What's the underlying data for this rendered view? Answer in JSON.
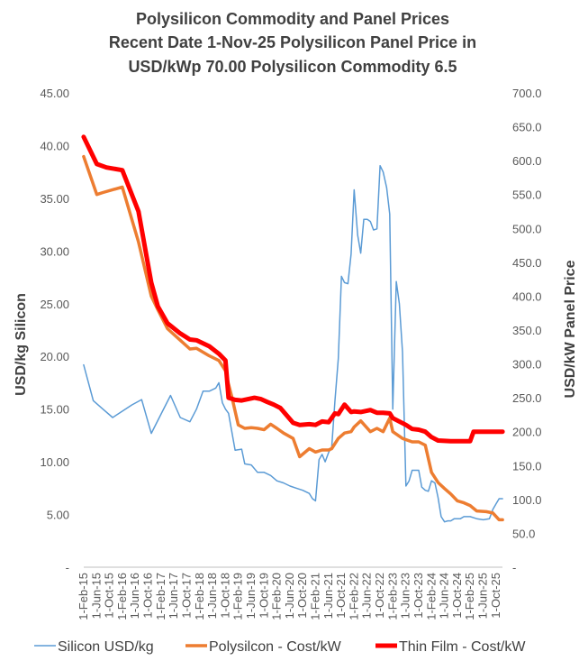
{
  "chart_data": {
    "type": "line",
    "title_lines": [
      "Polysilicon Commodity and Panel Prices",
      "Recent Date 1-Nov-25 Polysilicon Panel Price in",
      "USD/kWp 70.00 Polysilicon Commodity 6.5"
    ],
    "ylabel_left": "USD/kg Silicon",
    "ylabel_right": "USD/kW Panel Price",
    "ylim_left": [
      0,
      45
    ],
    "ylim_right": [
      0,
      700
    ],
    "yticks_left": [
      "-",
      "5.00",
      "10.00",
      "15.00",
      "20.00",
      "25.00",
      "30.00",
      "35.00",
      "40.00",
      "45.00"
    ],
    "yticks_right": [
      "-",
      "50.0",
      "100.0",
      "150.0",
      "200.0",
      "250.0",
      "300.0",
      "350.0",
      "400.0",
      "450.0",
      "500.0",
      "550.0",
      "600.0",
      "650.0",
      "700.0"
    ],
    "x_range": [
      2015.083,
      2025.917
    ],
    "xtick_labels": [
      "1-Feb-15",
      "1-Jun-15",
      "1-Oct-15",
      "1-Feb-16",
      "1-Jun-16",
      "1-Oct-16",
      "1-Feb-17",
      "1-Jun-17",
      "1-Oct-17",
      "1-Feb-18",
      "1-Jun-18",
      "1-Oct-18",
      "1-Feb-19",
      "1-Jun-19",
      "1-Oct-19",
      "1-Feb-20",
      "1-Jun-20",
      "1-Oct-20",
      "1-Feb-21",
      "1-Jun-21",
      "1-Oct-21",
      "1-Feb-22",
      "1-Jun-22",
      "1-Oct-22",
      "1-Feb-23",
      "1-Jun-23",
      "1-Oct-23",
      "1-Feb-24",
      "1-Jun-24",
      "1-Oct-24",
      "1-Feb-25",
      "1-Jun-25",
      "1-Oct-25"
    ],
    "series": [
      {
        "name": "Silicon USD/kg",
        "axis": "left",
        "color": "#5b9bd5",
        "width": 1.5,
        "x": [
          2015.08,
          2015.33,
          2015.58,
          2015.83,
          2016.08,
          2016.33,
          2016.58,
          2016.83,
          2017.08,
          2017.33,
          2017.58,
          2017.83,
          2018.0,
          2018.17,
          2018.33,
          2018.5,
          2018.58,
          2018.67,
          2018.75,
          2018.83,
          2019.0,
          2019.17,
          2019.25,
          2019.42,
          2019.58,
          2019.75,
          2019.92,
          2020.08,
          2020.25,
          2020.42,
          2020.58,
          2020.75,
          2020.92,
          2021.0,
          2021.08,
          2021.17,
          2021.25,
          2021.33,
          2021.42,
          2021.5,
          2021.58,
          2021.67,
          2021.75,
          2021.83,
          2021.92,
          2022.0,
          2022.08,
          2022.17,
          2022.25,
          2022.33,
          2022.42,
          2022.5,
          2022.58,
          2022.67,
          2022.75,
          2022.83,
          2022.92,
          2023.0,
          2023.08,
          2023.17,
          2023.25,
          2023.33,
          2023.42,
          2023.5,
          2023.58,
          2023.67,
          2023.75,
          2023.83,
          2023.92,
          2024.0,
          2024.08,
          2024.17,
          2024.25,
          2024.33,
          2024.42,
          2024.5,
          2024.58,
          2024.67,
          2024.75,
          2024.83,
          2024.92,
          2025.0,
          2025.08,
          2025.25,
          2025.42,
          2025.58,
          2025.67,
          2025.75,
          2025.83,
          2025.92
        ],
        "y": [
          19.2,
          15.8,
          15.0,
          14.2,
          14.8,
          15.4,
          15.9,
          12.7,
          14.5,
          16.3,
          14.2,
          13.8,
          15.0,
          16.7,
          16.7,
          17.0,
          17.5,
          15.6,
          15.0,
          14.6,
          11.1,
          11.2,
          9.8,
          9.7,
          9.0,
          9.0,
          8.7,
          8.2,
          8.0,
          7.7,
          7.5,
          7.3,
          7.0,
          6.5,
          6.3,
          10.2,
          10.7,
          10.0,
          10.9,
          11.4,
          15.7,
          19.8,
          27.6,
          27.0,
          26.9,
          29.7,
          35.8,
          31.5,
          29.8,
          33.0,
          33.0,
          32.8,
          32.0,
          32.1,
          38.1,
          37.5,
          36.0,
          33.5,
          15.0,
          27.1,
          25.0,
          20.4,
          7.7,
          8.2,
          9.2,
          9.2,
          9.2,
          7.6,
          7.3,
          7.2,
          8.2,
          8.0,
          6.6,
          4.8,
          4.3,
          4.4,
          4.4,
          4.6,
          4.6,
          4.6,
          4.8,
          4.8,
          4.8,
          4.6,
          4.5,
          4.6,
          5.5,
          6.0,
          6.5,
          6.5
        ]
      },
      {
        "name": "Polysilcon - Cost/kW",
        "axis": "right",
        "color": "#ed7d31",
        "width": 3.5,
        "x": [
          2015.08,
          2015.42,
          2015.58,
          2016.08,
          2016.5,
          2016.83,
          2017.0,
          2017.25,
          2017.58,
          2017.83,
          2018.0,
          2018.33,
          2018.58,
          2018.75,
          2018.83,
          2018.92,
          2019.08,
          2019.25,
          2019.42,
          2019.58,
          2019.75,
          2019.92,
          2020.08,
          2020.25,
          2020.5,
          2020.67,
          2020.92,
          2021.08,
          2021.25,
          2021.42,
          2021.5,
          2021.67,
          2021.83,
          2022.0,
          2022.08,
          2022.25,
          2022.5,
          2022.67,
          2022.83,
          2023.0,
          2023.08,
          2023.33,
          2023.58,
          2023.75,
          2023.92,
          2024.08,
          2024.25,
          2024.42,
          2024.58,
          2024.75,
          2024.92,
          2025.08,
          2025.25,
          2025.5,
          2025.67,
          2025.83,
          2025.92
        ],
        "y": [
          606,
          550,
          553,
          561,
          480,
          400,
          380,
          352,
          335,
          322,
          323,
          312,
          305,
          290,
          270,
          250,
          210,
          205,
          206,
          205,
          203,
          211,
          205,
          198,
          190,
          163,
          175,
          170,
          173,
          173,
          175,
          190,
          198,
          200,
          207,
          216,
          200,
          205,
          200,
          220,
          200,
          190,
          185,
          185,
          180,
          140,
          125,
          116,
          108,
          98,
          95,
          91,
          83,
          82,
          80,
          70,
          70
        ]
      },
      {
        "name": "Thin Film - Cost/kW",
        "axis": "right",
        "color": "#ff0000",
        "width": 5,
        "x": [
          2015.08,
          2015.42,
          2015.67,
          2016.08,
          2016.5,
          2016.83,
          2017.0,
          2017.25,
          2017.58,
          2017.83,
          2018.0,
          2018.33,
          2018.58,
          2018.75,
          2018.83,
          2019.0,
          2019.17,
          2019.5,
          2019.67,
          2019.83,
          2020.0,
          2020.17,
          2020.5,
          2020.67,
          2020.92,
          2021.08,
          2021.25,
          2021.42,
          2021.58,
          2021.67,
          2021.83,
          2022.0,
          2022.08,
          2022.25,
          2022.5,
          2022.67,
          2022.83,
          2023.0,
          2023.08,
          2023.42,
          2023.58,
          2023.75,
          2023.92,
          2024.08,
          2024.25,
          2024.58,
          2024.83,
          2025.08,
          2025.17,
          2025.42,
          2025.75,
          2025.92
        ],
        "y": [
          635,
          595,
          590,
          586,
          525,
          420,
          385,
          360,
          345,
          336,
          335,
          326,
          315,
          305,
          250,
          247,
          246,
          250,
          248,
          244,
          240,
          235,
          213,
          210,
          211,
          210,
          215,
          214,
          227,
          226,
          240,
          229,
          230,
          229,
          232,
          228,
          228,
          227,
          220,
          210,
          204,
          203,
          200,
          192,
          187,
          186,
          186,
          186,
          200,
          200,
          200,
          200
        ]
      }
    ],
    "legend_position": "bottom",
    "grid": false
  }
}
